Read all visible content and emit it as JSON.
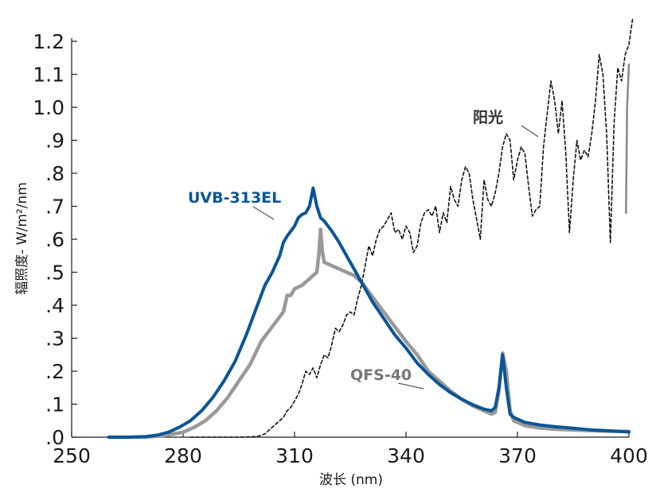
{
  "chart_data": {
    "type": "line",
    "title": "",
    "xlabel": "波长 (nm)",
    "ylabel": "辐照度- W/m²/nm",
    "xlim": [
      250,
      400
    ],
    "ylim": [
      0,
      1.2
    ],
    "x_ticks": [
      250,
      280,
      310,
      340,
      370,
      400
    ],
    "x_tick_labels": [
      "250",
      "280",
      "310",
      "340",
      "370",
      "400"
    ],
    "y_ticks": [
      0,
      0.1,
      0.2,
      0.3,
      0.4,
      0.5,
      0.6,
      0.7,
      0.8,
      0.9,
      1.0,
      1.1,
      1.2
    ],
    "y_tick_labels": [
      ".0",
      ".1",
      ".2",
      ".3",
      ".4",
      ".5",
      ".6",
      ".7",
      ".8",
      ".9",
      "1.0",
      "1.1",
      "1.2"
    ],
    "grid": false,
    "legend": "inline labels",
    "series": [
      {
        "name": "UVB-313EL",
        "color": "#0a5596",
        "style": "solid",
        "points": [
          [
            260,
            0.0
          ],
          [
            265,
            0.0
          ],
          [
            270,
            0.002
          ],
          [
            273,
            0.006
          ],
          [
            276,
            0.015
          ],
          [
            279,
            0.03
          ],
          [
            282,
            0.05
          ],
          [
            285,
            0.08
          ],
          [
            288,
            0.12
          ],
          [
            291,
            0.17
          ],
          [
            294,
            0.23
          ],
          [
            297,
            0.31
          ],
          [
            300,
            0.4
          ],
          [
            302,
            0.46
          ],
          [
            304,
            0.5
          ],
          [
            306,
            0.55
          ],
          [
            307,
            0.59
          ],
          [
            308,
            0.61
          ],
          [
            310,
            0.64
          ],
          [
            311,
            0.665
          ],
          [
            312,
            0.675
          ],
          [
            313,
            0.68
          ],
          [
            314,
            0.7
          ],
          [
            315,
            0.755
          ],
          [
            316,
            0.7
          ],
          [
            317,
            0.665
          ],
          [
            318,
            0.655
          ],
          [
            320,
            0.625
          ],
          [
            322,
            0.59
          ],
          [
            325,
            0.53
          ],
          [
            328,
            0.47
          ],
          [
            331,
            0.41
          ],
          [
            334,
            0.36
          ],
          [
            337,
            0.31
          ],
          [
            340,
            0.27
          ],
          [
            343,
            0.225
          ],
          [
            346,
            0.19
          ],
          [
            349,
            0.16
          ],
          [
            352,
            0.135
          ],
          [
            355,
            0.115
          ],
          [
            358,
            0.098
          ],
          [
            361,
            0.085
          ],
          [
            363,
            0.08
          ],
          [
            364,
            0.09
          ],
          [
            365,
            0.15
          ],
          [
            366,
            0.25
          ],
          [
            367,
            0.15
          ],
          [
            368,
            0.07
          ],
          [
            369,
            0.06
          ],
          [
            372,
            0.045
          ],
          [
            376,
            0.037
          ],
          [
            380,
            0.032
          ],
          [
            385,
            0.027
          ],
          [
            390,
            0.022
          ],
          [
            395,
            0.019
          ],
          [
            400,
            0.016
          ]
        ]
      },
      {
        "name": "QFS-40",
        "color": "#999999",
        "style": "solid",
        "points": [
          [
            260,
            0.0
          ],
          [
            270,
            0.0
          ],
          [
            275,
            0.005
          ],
          [
            280,
            0.015
          ],
          [
            283,
            0.03
          ],
          [
            286,
            0.05
          ],
          [
            289,
            0.08
          ],
          [
            292,
            0.12
          ],
          [
            295,
            0.17
          ],
          [
            298,
            0.22
          ],
          [
            301,
            0.29
          ],
          [
            303,
            0.32
          ],
          [
            305,
            0.35
          ],
          [
            307,
            0.38
          ],
          [
            308,
            0.43
          ],
          [
            309,
            0.43
          ],
          [
            310,
            0.45
          ],
          [
            312,
            0.46
          ],
          [
            313,
            0.47
          ],
          [
            314,
            0.48
          ],
          [
            315,
            0.49
          ],
          [
            316,
            0.5
          ],
          [
            316.5,
            0.55
          ],
          [
            317,
            0.63
          ],
          [
            317.5,
            0.56
          ],
          [
            318,
            0.53
          ],
          [
            320,
            0.52
          ],
          [
            322,
            0.51
          ],
          [
            324,
            0.5
          ],
          [
            326,
            0.49
          ],
          [
            328,
            0.47
          ],
          [
            330,
            0.44
          ],
          [
            332,
            0.41
          ],
          [
            334,
            0.38
          ],
          [
            336,
            0.35
          ],
          [
            338,
            0.32
          ],
          [
            340,
            0.29
          ],
          [
            343,
            0.25
          ],
          [
            346,
            0.2
          ],
          [
            349,
            0.17
          ],
          [
            352,
            0.14
          ],
          [
            355,
            0.115
          ],
          [
            358,
            0.095
          ],
          [
            361,
            0.08
          ],
          [
            363,
            0.07
          ],
          [
            364,
            0.075
          ],
          [
            365,
            0.14
          ],
          [
            366,
            0.255
          ],
          [
            367,
            0.2
          ],
          [
            368,
            0.08
          ],
          [
            369,
            0.05
          ],
          [
            372,
            0.035
          ],
          [
            376,
            0.028
          ],
          [
            380,
            0.024
          ],
          [
            385,
            0.022
          ],
          [
            390,
            0.02
          ],
          [
            395,
            0.018
          ],
          [
            400,
            0.017
          ]
        ]
      },
      {
        "name": "阳光",
        "color": "#111111",
        "style": "dashed",
        "points": [
          [
            282,
            0.0
          ],
          [
            290,
            0.0
          ],
          [
            295,
            0.0
          ],
          [
            300,
            0.002
          ],
          [
            302,
            0.01
          ],
          [
            304,
            0.03
          ],
          [
            306,
            0.05
          ],
          [
            307,
            0.06
          ],
          [
            308,
            0.08
          ],
          [
            309,
            0.09
          ],
          [
            310,
            0.11
          ],
          [
            311,
            0.13
          ],
          [
            312,
            0.16
          ],
          [
            313,
            0.2
          ],
          [
            314,
            0.19
          ],
          [
            315,
            0.21
          ],
          [
            316,
            0.18
          ],
          [
            317,
            0.22
          ],
          [
            318,
            0.25
          ],
          [
            319,
            0.24
          ],
          [
            320,
            0.28
          ],
          [
            321,
            0.33
          ],
          [
            322,
            0.32
          ],
          [
            323,
            0.34
          ],
          [
            324,
            0.37
          ],
          [
            325,
            0.38
          ],
          [
            326,
            0.37
          ],
          [
            327,
            0.42
          ],
          [
            328,
            0.46
          ],
          [
            329,
            0.52
          ],
          [
            330,
            0.58
          ],
          [
            331,
            0.55
          ],
          [
            332,
            0.6
          ],
          [
            333,
            0.63
          ],
          [
            334,
            0.64
          ],
          [
            335,
            0.66
          ],
          [
            336,
            0.68
          ],
          [
            337,
            0.62
          ],
          [
            338,
            0.63
          ],
          [
            339,
            0.6
          ],
          [
            340,
            0.64
          ],
          [
            341,
            0.62
          ],
          [
            342,
            0.56
          ],
          [
            343,
            0.58
          ],
          [
            344,
            0.65
          ],
          [
            345,
            0.68
          ],
          [
            346,
            0.69
          ],
          [
            347,
            0.67
          ],
          [
            348,
            0.7
          ],
          [
            349,
            0.62
          ],
          [
            350,
            0.68
          ],
          [
            351,
            0.65
          ],
          [
            352,
            0.76
          ],
          [
            353,
            0.72
          ],
          [
            354,
            0.7
          ],
          [
            355,
            0.78
          ],
          [
            356,
            0.82
          ],
          [
            357,
            0.8
          ],
          [
            358,
            0.72
          ],
          [
            359,
            0.66
          ],
          [
            360,
            0.6
          ],
          [
            361,
            0.78
          ],
          [
            362,
            0.72
          ],
          [
            363,
            0.7
          ],
          [
            364,
            0.74
          ],
          [
            365,
            0.8
          ],
          [
            366,
            0.88
          ],
          [
            367,
            0.92
          ],
          [
            368,
            0.9
          ],
          [
            369,
            0.78
          ],
          [
            370,
            0.84
          ],
          [
            371,
            0.88
          ],
          [
            372,
            0.86
          ],
          [
            373,
            0.76
          ],
          [
            374,
            0.67
          ],
          [
            375,
            0.69
          ],
          [
            376,
            0.7
          ],
          [
            377,
            0.88
          ],
          [
            378,
            0.98
          ],
          [
            379,
            1.08
          ],
          [
            380,
            1.02
          ],
          [
            381,
            0.92
          ],
          [
            382,
            1.02
          ],
          [
            383,
            0.86
          ],
          [
            384,
            0.62
          ],
          [
            385,
            0.78
          ],
          [
            386,
            0.9
          ],
          [
            387,
            0.84
          ],
          [
            388,
            0.87
          ],
          [
            389,
            0.85
          ],
          [
            390,
            0.92
          ],
          [
            391,
            1.02
          ],
          [
            392,
            1.16
          ],
          [
            393,
            1.1
          ],
          [
            394,
            0.92
          ],
          [
            395,
            0.59
          ],
          [
            396,
            0.95
          ],
          [
            397,
            1.12
          ],
          [
            398,
            1.08
          ],
          [
            399,
            1.16
          ],
          [
            400,
            1.19
          ],
          [
            401,
            1.27
          ]
        ]
      },
      {
        "name": "",
        "color": "#888888",
        "style": "solid",
        "points": [
          [
            399.2,
            0.68
          ],
          [
            399.5,
            1.0
          ],
          [
            400,
            1.13
          ]
        ]
      }
    ],
    "annotations": [
      {
        "text": "UVB-313EL",
        "color": "#0a5596"
      },
      {
        "text": "QFS-40",
        "color": "#777777"
      },
      {
        "text": "阳光",
        "color": "#333333"
      }
    ]
  }
}
